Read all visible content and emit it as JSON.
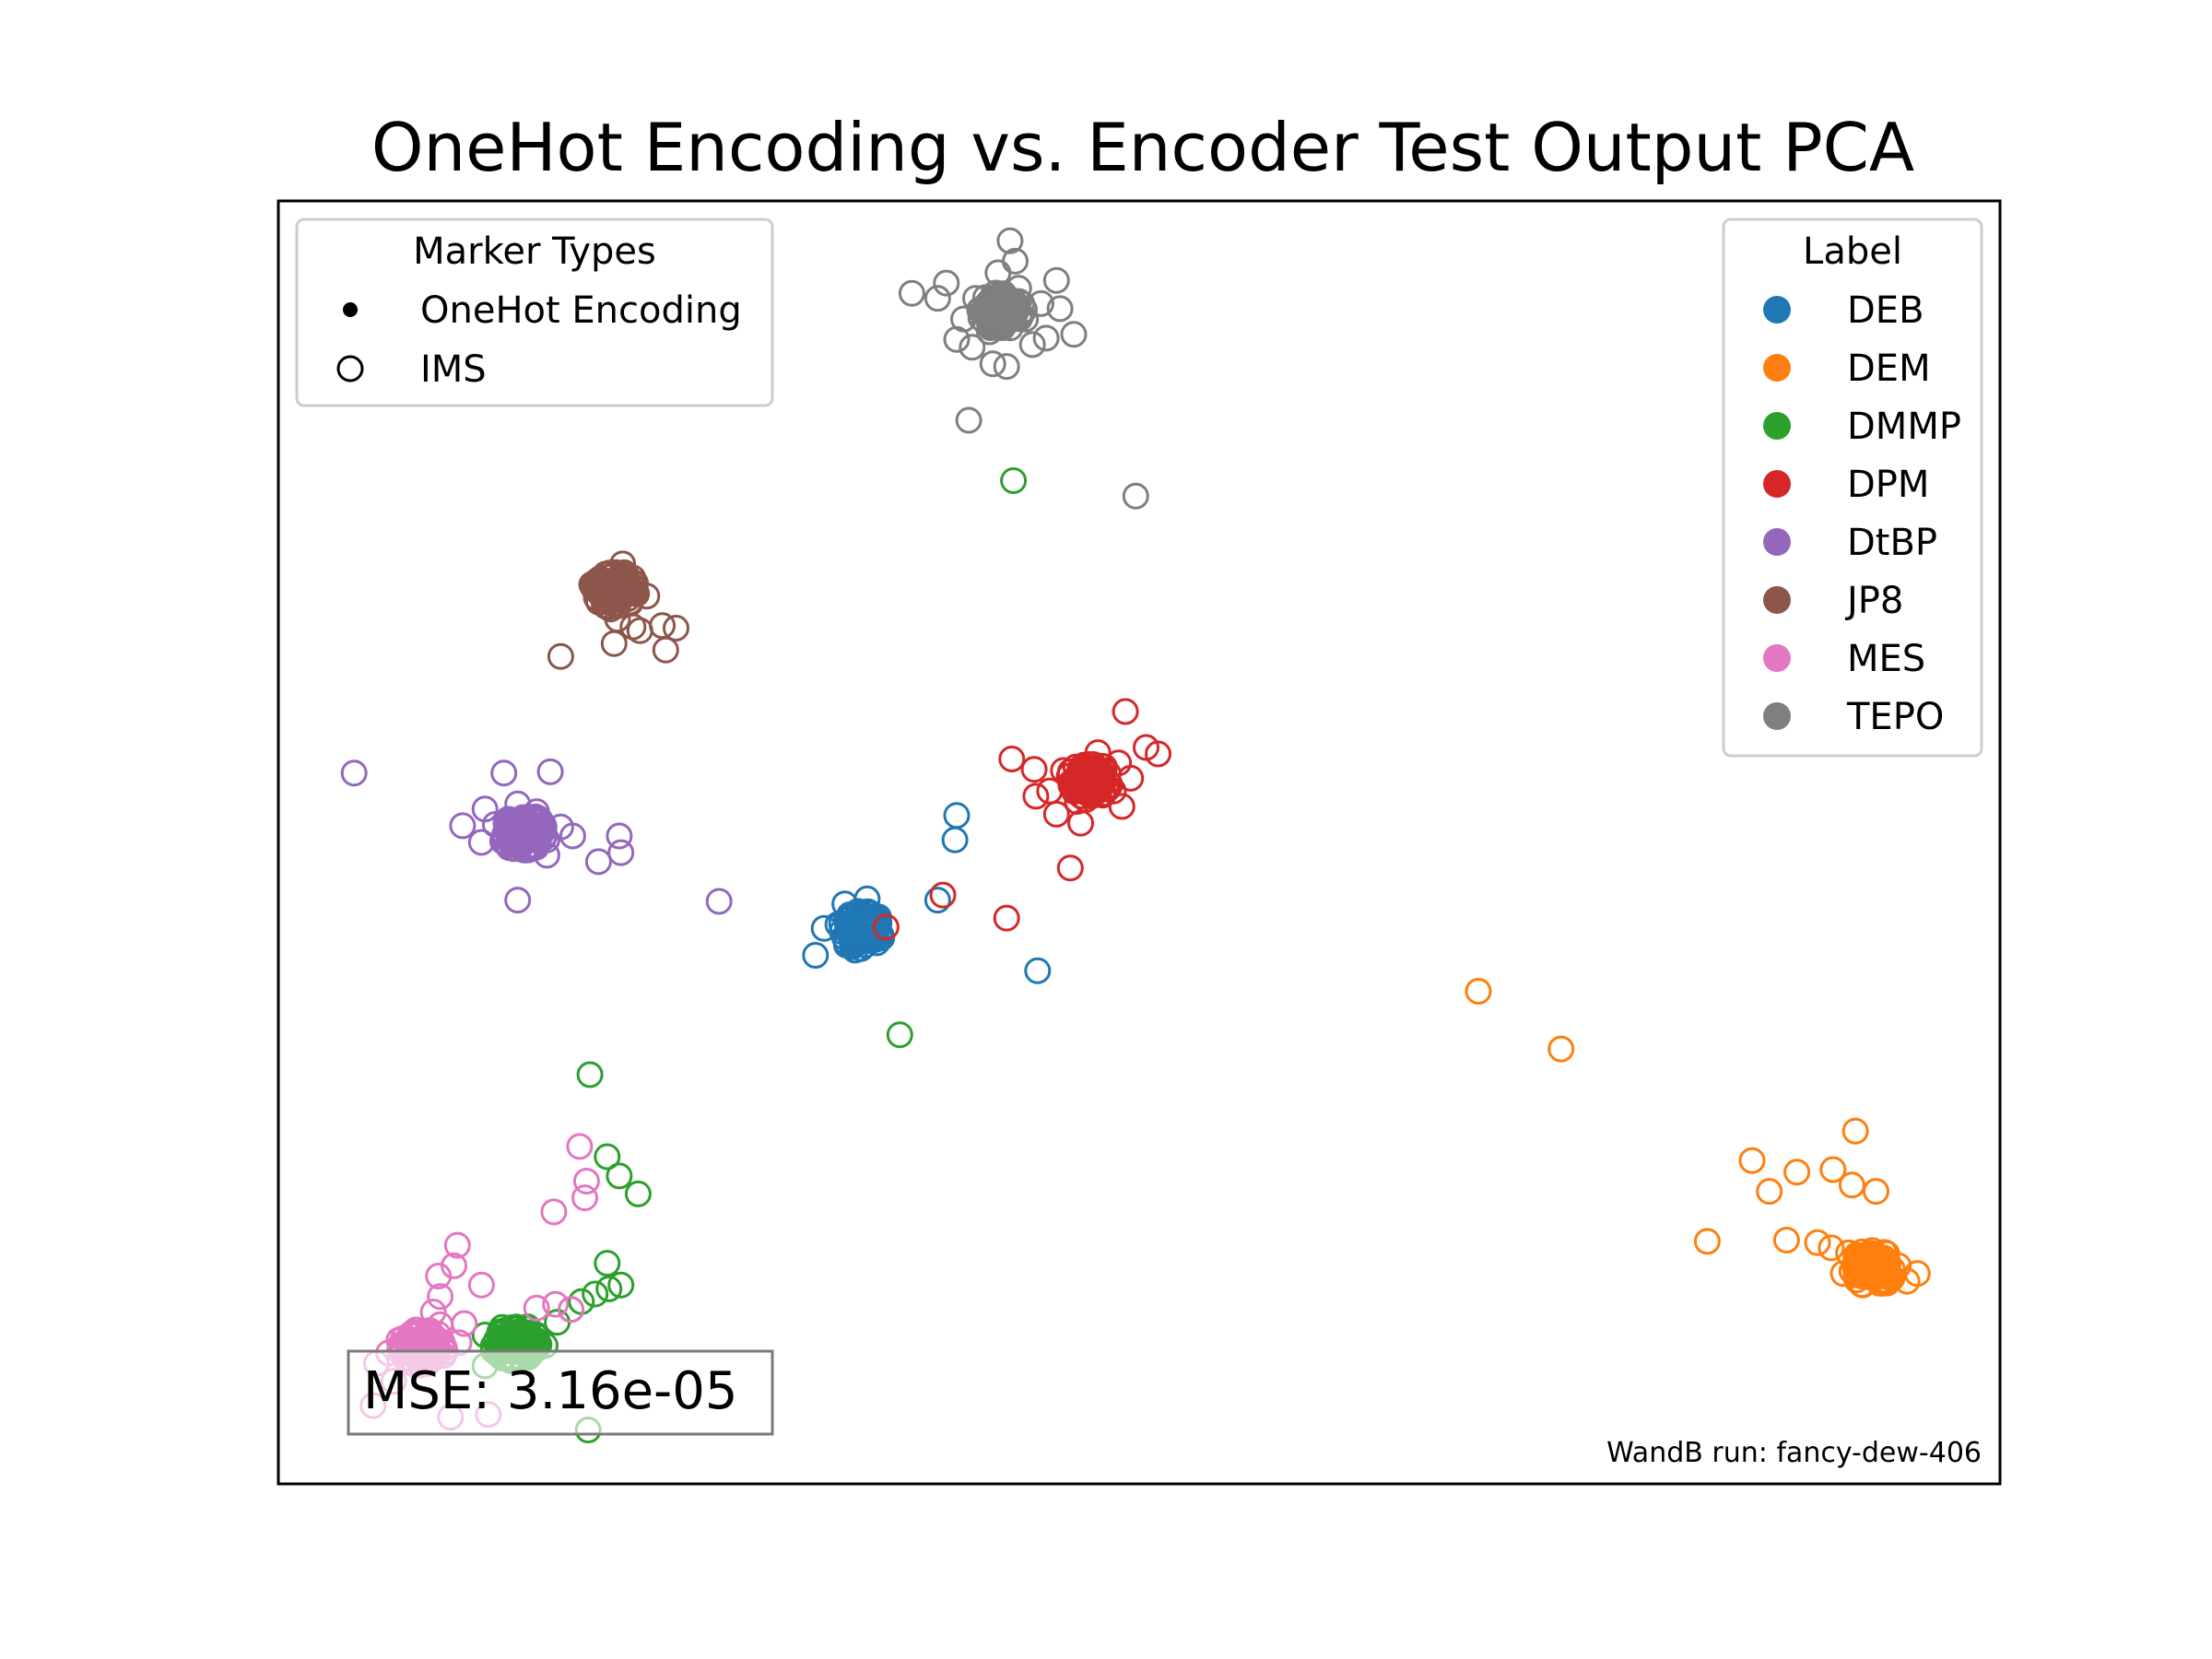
{
  "chart_data": {
    "type": "scatter",
    "title": "OneHot Encoding vs. Encoder Test Output PCA",
    "xlabel": "",
    "ylabel": "",
    "xlim": [
      0,
      100
    ],
    "ylim": [
      0,
      100
    ],
    "grid": false,
    "axes_ticks": false,
    "marker_legend": {
      "title": "Marker Types",
      "placement": "top-left",
      "entries": [
        {
          "label": "OneHot Encoding",
          "marker": "filled"
        },
        {
          "label": "IMS",
          "marker": "hollow"
        }
      ]
    },
    "label_legend": {
      "title": "Label",
      "placement": "top-right"
    },
    "annotation": {
      "text": "MSE: 3.16e-05",
      "placement": "bottom-left"
    },
    "footer_note": {
      "text": "WandB run: fancy-dew-406",
      "placement": "bottom-right"
    },
    "series": [
      {
        "name": "DEB",
        "color": "#1f77b4",
        "onehot_center": [
          33.9,
          43.2
        ],
        "ims_points": [
          [
            33.9,
            43.2
          ],
          [
            33.2,
            44.3
          ],
          [
            34.6,
            42.4
          ],
          [
            33.0,
            42.0
          ],
          [
            34.8,
            44.0
          ],
          [
            32.9,
            45.2
          ],
          [
            35.0,
            42.8
          ],
          [
            33.5,
            41.6
          ],
          [
            32.5,
            43.6
          ],
          [
            34.2,
            45.6
          ],
          [
            31.7,
            43.3
          ],
          [
            31.2,
            41.2
          ],
          [
            38.3,
            45.5
          ],
          [
            39.3,
            50.2
          ],
          [
            39.4,
            52.1
          ],
          [
            44.1,
            40.0
          ]
        ]
      },
      {
        "name": "DEM",
        "color": "#ff7f0e",
        "onehot_center": [
          92.6,
          16.8
        ],
        "ims_points": [
          [
            92.6,
            16.8
          ],
          [
            91.2,
            18.0
          ],
          [
            93.6,
            16.1
          ],
          [
            92.1,
            17.3
          ],
          [
            94.1,
            17.0
          ],
          [
            90.9,
            16.4
          ],
          [
            93.3,
            15.9
          ],
          [
            92.0,
            16.2
          ],
          [
            90.2,
            18.4
          ],
          [
            94.6,
            15.8
          ],
          [
            95.2,
            16.4
          ],
          [
            89.4,
            18.8
          ],
          [
            87.6,
            19.0
          ],
          [
            83.0,
            18.9
          ],
          [
            86.6,
            22.8
          ],
          [
            85.6,
            25.2
          ],
          [
            90.3,
            24.5
          ],
          [
            91.4,
            23.3
          ],
          [
            92.8,
            22.8
          ],
          [
            91.6,
            27.5
          ],
          [
            69.7,
            38.4
          ],
          [
            74.5,
            33.9
          ],
          [
            88.2,
            24.3
          ]
        ]
      },
      {
        "name": "DMMP",
        "color": "#2ca02c",
        "onehot_center": [
          13.8,
          11.0
        ],
        "ims_points": [
          [
            13.8,
            11.0
          ],
          [
            12.5,
            10.4
          ],
          [
            15.0,
            11.6
          ],
          [
            13.0,
            12.2
          ],
          [
            14.6,
            10.2
          ],
          [
            12.0,
            11.6
          ],
          [
            15.5,
            10.8
          ],
          [
            13.5,
            9.6
          ],
          [
            16.2,
            12.6
          ],
          [
            17.0,
            13.6
          ],
          [
            17.6,
            14.2
          ],
          [
            18.4,
            14.8
          ],
          [
            19.2,
            15.2
          ],
          [
            19.9,
            15.5
          ],
          [
            19.1,
            17.2
          ],
          [
            19.1,
            25.5
          ],
          [
            20.9,
            22.6
          ],
          [
            19.8,
            24.0
          ],
          [
            18.1,
            31.9
          ],
          [
            36.1,
            35.0
          ],
          [
            18.0,
            4.2
          ],
          [
            42.7,
            78.2
          ],
          [
            12.0,
            9.2
          ]
        ]
      },
      {
        "name": "DPM",
        "color": "#d62728",
        "onehot_center": [
          47.1,
          54.8
        ],
        "ims_points": [
          [
            47.1,
            54.8
          ],
          [
            45.6,
            55.6
          ],
          [
            48.5,
            54.0
          ],
          [
            46.4,
            53.2
          ],
          [
            48.8,
            56.2
          ],
          [
            44.8,
            54.0
          ],
          [
            47.6,
            57.0
          ],
          [
            49.5,
            55.0
          ],
          [
            43.9,
            55.7
          ],
          [
            45.2,
            52.2
          ],
          [
            50.4,
            57.4
          ],
          [
            46.6,
            51.5
          ],
          [
            42.6,
            56.5
          ],
          [
            44.0,
            53.6
          ],
          [
            49.0,
            52.8
          ],
          [
            51.1,
            56.9
          ],
          [
            49.2,
            60.2
          ],
          [
            46.0,
            48.0
          ],
          [
            38.6,
            45.9
          ],
          [
            42.3,
            44.1
          ],
          [
            35.3,
            43.4
          ]
        ]
      },
      {
        "name": "DtBP",
        "color": "#9467bd",
        "onehot_center": [
          14.2,
          50.8
        ],
        "ims_points": [
          [
            14.2,
            50.8
          ],
          [
            12.6,
            51.4
          ],
          [
            15.6,
            50.2
          ],
          [
            13.4,
            49.6
          ],
          [
            15.0,
            52.4
          ],
          [
            11.8,
            50.0
          ],
          [
            16.4,
            51.2
          ],
          [
            13.9,
            53.0
          ],
          [
            12.0,
            52.6
          ],
          [
            15.6,
            49.0
          ],
          [
            10.7,
            51.3
          ],
          [
            17.1,
            50.5
          ],
          [
            13.1,
            55.4
          ],
          [
            15.8,
            55.5
          ],
          [
            19.8,
            50.5
          ],
          [
            19.9,
            49.2
          ],
          [
            18.6,
            48.5
          ],
          [
            13.9,
            45.5
          ],
          [
            4.4,
            55.4
          ],
          [
            25.6,
            45.4
          ]
        ]
      },
      {
        "name": "JP8",
        "color": "#8c564b",
        "onehot_center": [
          19.5,
          69.7
        ],
        "ims_points": [
          [
            19.5,
            69.7
          ],
          [
            19.0,
            70.9
          ],
          [
            20.3,
            69.0
          ],
          [
            19.3,
            68.2
          ],
          [
            20.6,
            70.6
          ],
          [
            18.6,
            69.5
          ],
          [
            20.0,
            71.7
          ],
          [
            19.7,
            67.4
          ],
          [
            21.4,
            69.2
          ],
          [
            20.6,
            66.8
          ],
          [
            22.3,
            66.9
          ],
          [
            21.0,
            66.5
          ],
          [
            22.5,
            65.0
          ],
          [
            23.1,
            66.7
          ],
          [
            19.5,
            65.5
          ],
          [
            16.4,
            64.5
          ]
        ]
      },
      {
        "name": "MES",
        "color": "#e377c2",
        "onehot_center": [
          8.4,
          10.6
        ],
        "ims_points": [
          [
            8.4,
            10.6
          ],
          [
            7.0,
            11.2
          ],
          [
            9.6,
            10.0
          ],
          [
            8.0,
            12.0
          ],
          [
            9.4,
            12.4
          ],
          [
            6.4,
            10.2
          ],
          [
            10.5,
            11.0
          ],
          [
            7.8,
            9.4
          ],
          [
            9.0,
            13.4
          ],
          [
            10.8,
            12.5
          ],
          [
            5.7,
            9.4
          ],
          [
            9.4,
            14.6
          ],
          [
            9.3,
            16.2
          ],
          [
            10.2,
            17.0
          ],
          [
            11.8,
            15.5
          ],
          [
            10.4,
            18.6
          ],
          [
            15.0,
            13.7
          ],
          [
            16.1,
            14.0
          ],
          [
            17.0,
            13.6
          ],
          [
            16.0,
            21.2
          ],
          [
            17.8,
            22.3
          ],
          [
            17.9,
            23.6
          ],
          [
            17.5,
            26.3
          ],
          [
            5.5,
            6.1
          ],
          [
            10.0,
            5.2
          ],
          [
            12.2,
            5.4
          ],
          [
            6.7,
            8.0
          ]
        ]
      },
      {
        "name": "TEPO",
        "color": "#7f7f7f",
        "onehot_center": [
          42.0,
          91.4
        ],
        "ims_points": [
          [
            42.0,
            91.4
          ],
          [
            40.5,
            92.4
          ],
          [
            43.4,
            90.8
          ],
          [
            41.3,
            89.8
          ],
          [
            43.0,
            93.2
          ],
          [
            39.8,
            90.8
          ],
          [
            44.3,
            92.0
          ],
          [
            41.8,
            94.4
          ],
          [
            40.3,
            88.6
          ],
          [
            43.8,
            88.8
          ],
          [
            38.8,
            93.6
          ],
          [
            45.2,
            93.8
          ],
          [
            42.8,
            95.3
          ],
          [
            42.5,
            96.9
          ],
          [
            44.6,
            89.3
          ],
          [
            39.4,
            89.2
          ],
          [
            38.3,
            92.4
          ],
          [
            36.8,
            92.8
          ],
          [
            45.4,
            91.6
          ],
          [
            46.2,
            89.6
          ],
          [
            41.5,
            87.3
          ],
          [
            42.3,
            87.1
          ],
          [
            40.1,
            82.9
          ],
          [
            49.8,
            77.0
          ]
        ]
      }
    ]
  }
}
